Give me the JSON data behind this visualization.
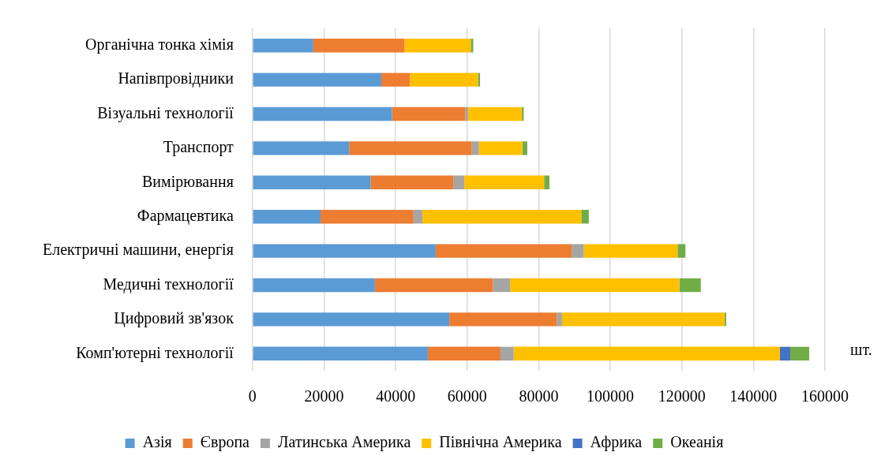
{
  "chart_data": {
    "type": "bar",
    "orientation": "horizontal",
    "stacked": true,
    "xlabel": "шт.",
    "categories": [
      "Органічна тонка хімія",
      "Напівпровідники",
      "Візуальні технології",
      "Транспорт",
      "Вимірювання",
      "Фармацевтика",
      "Електричні машини, енергія",
      "Медичні технології",
      "Цифровий зв'язок",
      "Комп'ютерні технології"
    ],
    "series": [
      {
        "name": "Азія",
        "color": "#5b9bd5",
        "values": [
          17000,
          36000,
          39000,
          27000,
          33000,
          19000,
          51200,
          34200,
          55000,
          49000
        ]
      },
      {
        "name": "Європа",
        "color": "#ed7d31",
        "values": [
          25500,
          8000,
          20500,
          34300,
          23200,
          26000,
          38000,
          33000,
          30100,
          20300
        ]
      },
      {
        "name": "Латинська Америка",
        "color": "#a5a5a5",
        "values": [
          0,
          0,
          800,
          2000,
          3000,
          2500,
          3400,
          4800,
          1400,
          3700
        ]
      },
      {
        "name": "Північна Америка",
        "color": "#ffc000",
        "values": [
          18500,
          19000,
          15000,
          12100,
          22300,
          44400,
          26200,
          47300,
          45400,
          74400
        ]
      },
      {
        "name": "Африка",
        "color": "#4472c4",
        "values": [
          0,
          0,
          0,
          0,
          0,
          0,
          0,
          0,
          0,
          2900
        ]
      },
      {
        "name": "Океанія",
        "color": "#70ad47",
        "values": [
          700,
          600,
          500,
          1400,
          1500,
          2100,
          2200,
          6000,
          500,
          5300
        ]
      }
    ],
    "xlim": [
      0,
      160000
    ],
    "xticks": [
      0,
      20000,
      40000,
      60000,
      80000,
      100000,
      120000,
      140000,
      160000
    ],
    "grid": "x",
    "legend": "bottom"
  }
}
